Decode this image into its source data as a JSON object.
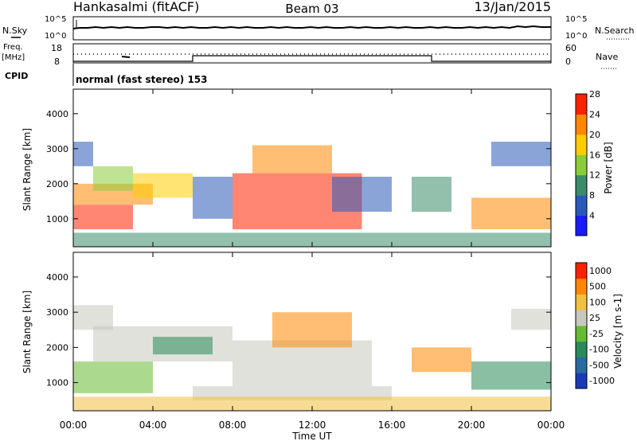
{
  "header": {
    "station": "Hankasalmi (fitACF)",
    "beam": "Beam 03",
    "date": "13/Jan/2015"
  },
  "noise_panel": {
    "left_label": "N.Sky",
    "right_label": "N.Search",
    "left_ticks": [
      "10^5",
      "10^0"
    ],
    "right_ticks": [
      "10^5",
      "10^0"
    ]
  },
  "freq_panel": {
    "left_label_top": "Freq.",
    "left_label_unit": "[MHz]",
    "right_label": "Nave",
    "left_ticks": [
      "18",
      "8"
    ],
    "right_ticks": [
      "60",
      "0"
    ]
  },
  "cpid": {
    "label": "CPID",
    "text": "normal (fast stereo) 153"
  },
  "chart_data": [
    {
      "type": "heatmap",
      "name": "power",
      "ylabel": "Slant Range [km]",
      "yticks": [
        1000,
        2000,
        3000,
        4000
      ],
      "ylim": [
        200,
        4700
      ],
      "xlim": [
        0,
        24
      ],
      "colorbar": {
        "label": "Power [dB]",
        "ticks": [
          "4",
          "8",
          "12",
          "16",
          "20",
          "24",
          "28"
        ],
        "colors": [
          "#1a1aff",
          "#2a5ab8",
          "#3a8c6a",
          "#8ccc3a",
          "#ffcc00",
          "#ff8800",
          "#ff2200"
        ]
      }
    },
    {
      "type": "heatmap",
      "name": "velocity",
      "ylabel": "Slant Range [km]",
      "yticks": [
        1000,
        2000,
        3000,
        4000
      ],
      "ylim": [
        200,
        4700
      ],
      "xlim": [
        0,
        24
      ],
      "colorbar": {
        "label": "Velocity [m s-1]",
        "ticks": [
          "1000",
          "500",
          "100",
          "25",
          "-25",
          "-100",
          "-500",
          "-1000"
        ],
        "colors": [
          "#1a3ab8",
          "#2a6aa0",
          "#2a8a5a",
          "#66bb33",
          "#c8c8c0",
          "#f0c040",
          "#ff8800",
          "#ff2200"
        ]
      }
    }
  ],
  "x_axis": {
    "ticks": [
      "00:00",
      "04:00",
      "08:00",
      "12:00",
      "16:00",
      "20:00",
      "00:00"
    ],
    "label": "Time UT"
  }
}
